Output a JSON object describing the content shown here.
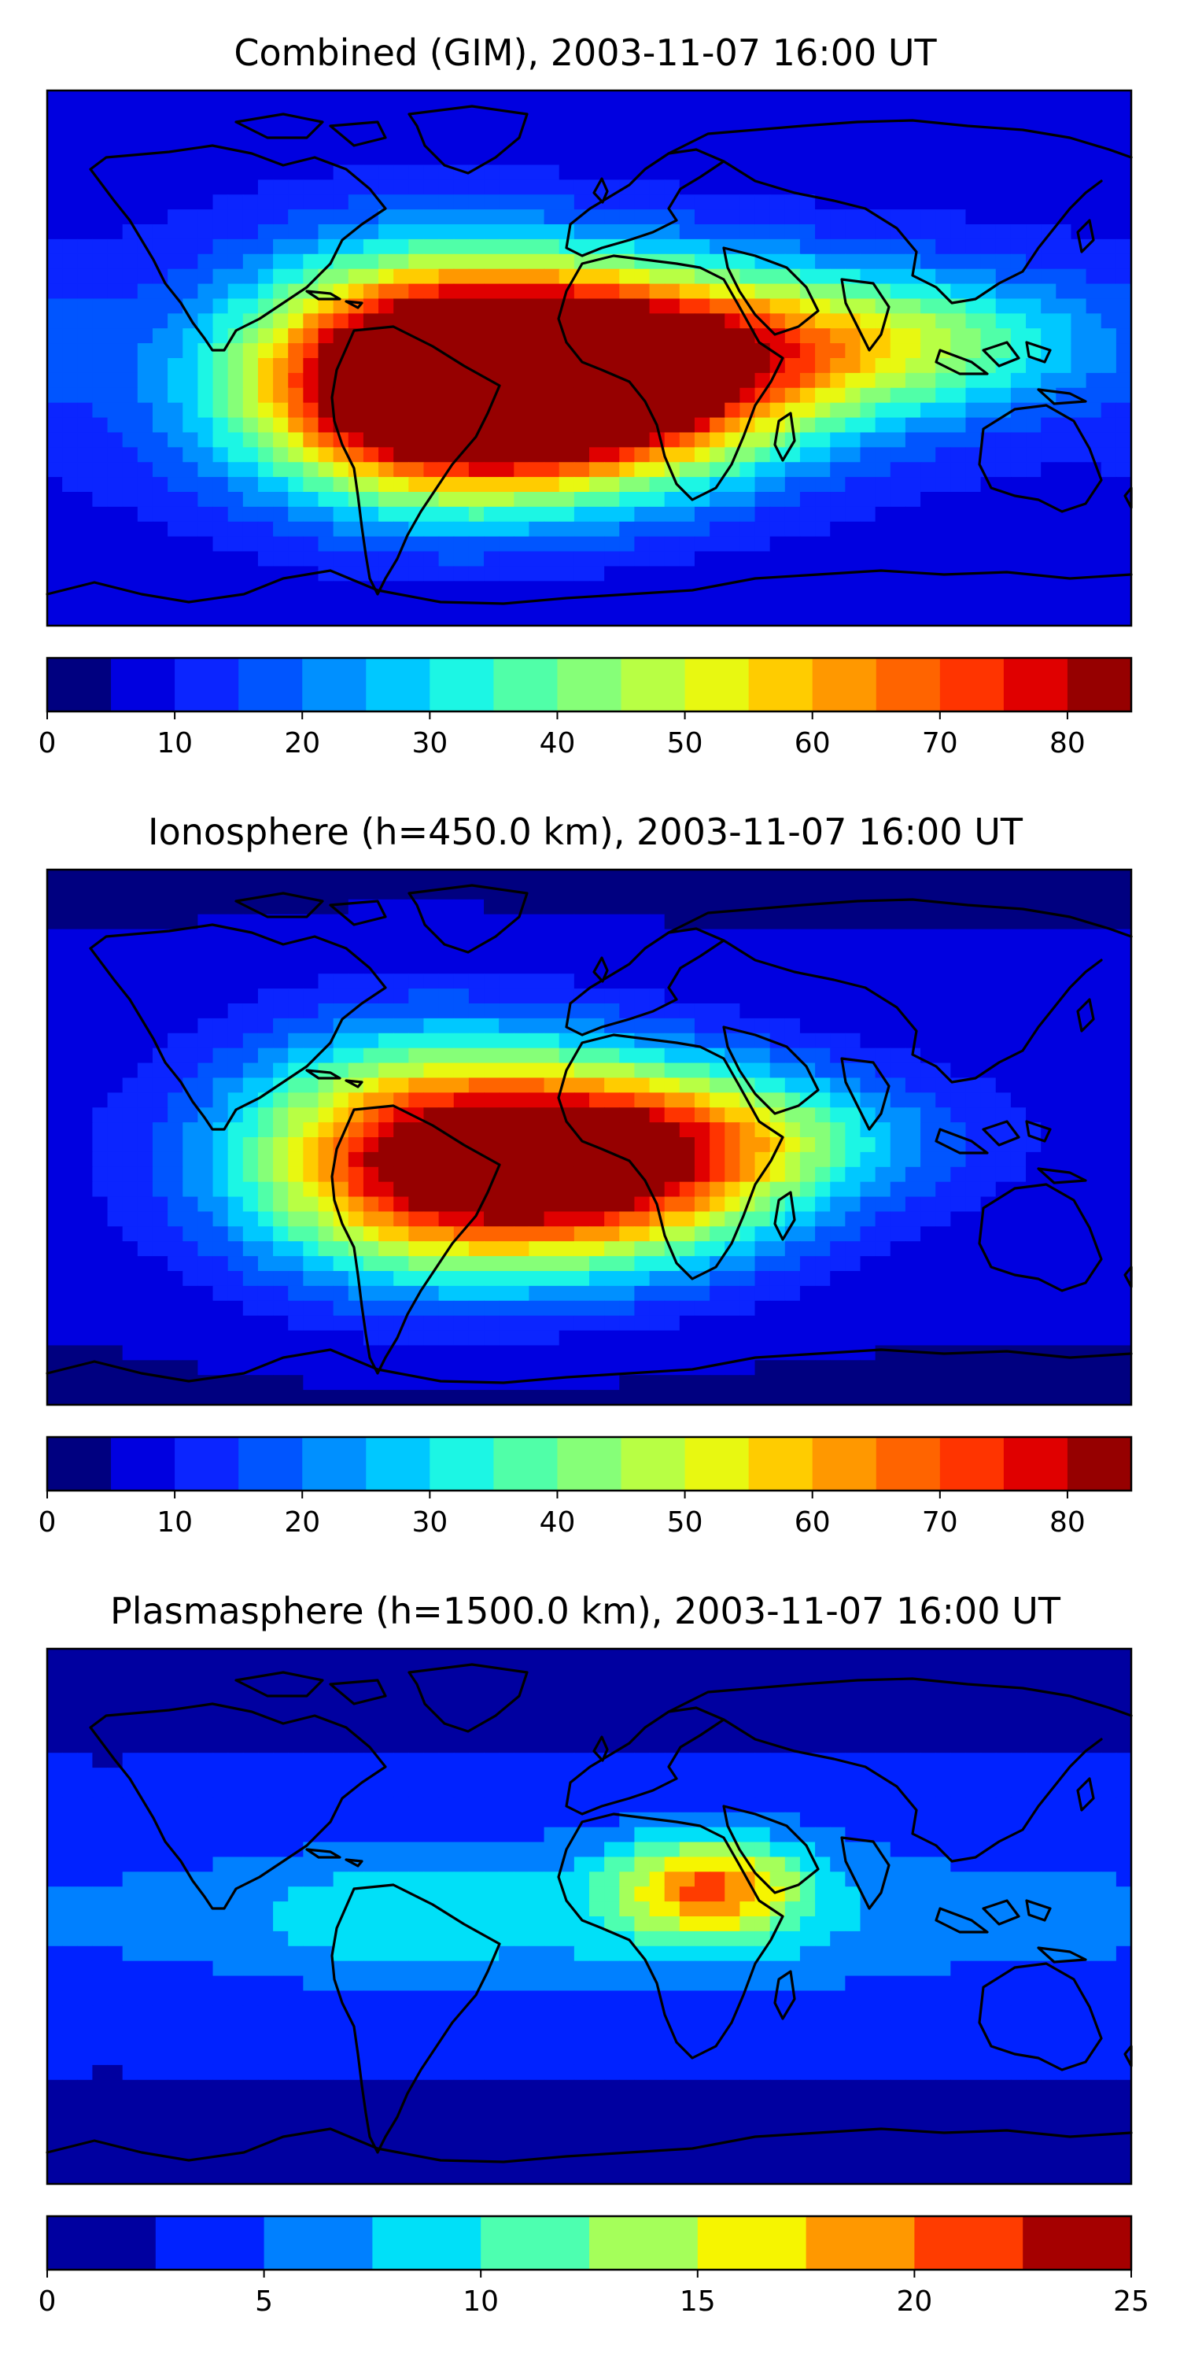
{
  "chart_data": [
    {
      "type": "heatmap",
      "title": "Combined (GIM), 2003-11-07 16:00 UT",
      "colorbar": {
        "min": 0,
        "max": 85,
        "step": 5,
        "ticks": [
          0,
          10,
          20,
          30,
          40,
          50,
          60,
          70,
          80
        ],
        "tick_labels": [
          "0",
          "10",
          "20",
          "30",
          "40",
          "50",
          "60",
          "70",
          "80"
        ],
        "colors": [
          "#000080",
          "#0000e0",
          "#0b25ff",
          "#0055ff",
          "#0090ff",
          "#00c8ff",
          "#1cf6e4",
          "#50ffa8",
          "#86ff78",
          "#b8ff44",
          "#e8f811",
          "#ffcc00",
          "#ff9800",
          "#ff6400",
          "#ff3400",
          "#e00000",
          "#960000"
        ]
      },
      "field": {
        "background": 10,
        "peaks": [
          {
            "lon": -30,
            "lat": -10,
            "value": 74,
            "spread_lon": 55,
            "spread_lat": 24
          },
          {
            "lon": -55,
            "lat": -5,
            "value": 58,
            "spread_lon": 40,
            "spread_lat": 28
          },
          {
            "lon": 5,
            "lat": -5,
            "value": 62,
            "spread_lon": 45,
            "spread_lat": 22
          },
          {
            "lon": 70,
            "lat": 5,
            "value": 38,
            "spread_lon": 50,
            "spread_lat": 18
          },
          {
            "lon": 120,
            "lat": 5,
            "value": 26,
            "spread_lon": 40,
            "spread_lat": 15
          }
        ]
      }
    },
    {
      "type": "heatmap",
      "title": "Ionosphere  (h=450.0 km), 2003-11-07 16:00 UT",
      "colorbar": {
        "min": 0,
        "max": 85,
        "step": 5,
        "ticks": [
          0,
          10,
          20,
          30,
          40,
          50,
          60,
          70,
          80
        ],
        "tick_labels": [
          "0",
          "10",
          "20",
          "30",
          "40",
          "50",
          "60",
          "70",
          "80"
        ],
        "colors": [
          "#000080",
          "#0000e0",
          "#0b25ff",
          "#0055ff",
          "#0090ff",
          "#00c8ff",
          "#1cf6e4",
          "#50ffa8",
          "#86ff78",
          "#b8ff44",
          "#e8f811",
          "#ffcc00",
          "#ff9800",
          "#ff6400",
          "#ff3400",
          "#e00000",
          "#960000"
        ]
      },
      "field": {
        "background": 7,
        "peaks": [
          {
            "lon": -25,
            "lat": -10,
            "value": 56,
            "spread_lon": 55,
            "spread_lat": 24
          },
          {
            "lon": -60,
            "lat": -5,
            "value": 44,
            "spread_lon": 40,
            "spread_lat": 28
          },
          {
            "lon": 10,
            "lat": -8,
            "value": 46,
            "spread_lon": 40,
            "spread_lat": 22
          },
          {
            "lon": 60,
            "lat": 0,
            "value": 26,
            "spread_lon": 45,
            "spread_lat": 15
          }
        ]
      }
    },
    {
      "type": "heatmap",
      "title": "Plasmasphere (h=1500.0 km), 2003-11-07 16:00 UT",
      "colorbar": {
        "min": 0,
        "max": 25,
        "step": 2.5,
        "ticks": [
          0,
          5,
          10,
          15,
          20,
          25
        ],
        "tick_labels": [
          "0",
          "5",
          "10",
          "15",
          "20",
          "25"
        ],
        "colors": [
          "#0000a0",
          "#0022ff",
          "#0080ff",
          "#00e0f8",
          "#4dffb0",
          "#a5ff5a",
          "#f6f500",
          "#ff9800",
          "#ff3c00",
          "#a50000"
        ]
      },
      "field": {
        "background": 3,
        "peaks": [
          {
            "lon": 40,
            "lat": 10,
            "value": 16.5,
            "spread_lon": 22,
            "spread_lat": 12
          },
          {
            "lon": 20,
            "lat": 0,
            "value": 8,
            "spread_lon": 85,
            "spread_lat": 20
          },
          {
            "lon": -70,
            "lat": 0,
            "value": 6,
            "spread_lon": 30,
            "spread_lat": 14
          },
          {
            "lon": -150,
            "lat": 0,
            "value": 5,
            "spread_lon": 60,
            "spread_lat": 16
          }
        ]
      }
    }
  ]
}
